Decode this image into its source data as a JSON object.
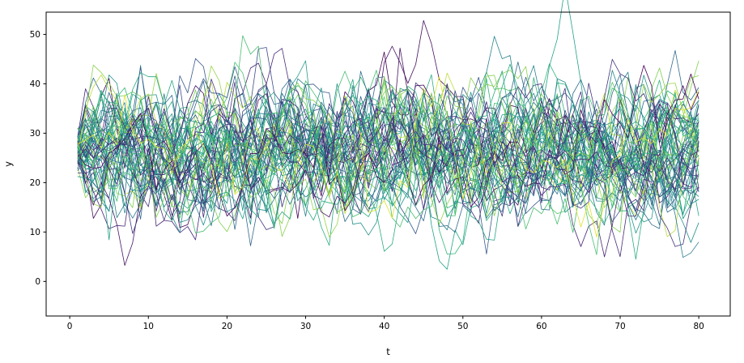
{
  "chart_data": {
    "type": "line",
    "title": "",
    "xlabel": "t",
    "ylabel": "y",
    "xlim": [
      -3,
      84
    ],
    "ylim": [
      -7,
      54.5
    ],
    "xticks": [
      0,
      10,
      20,
      30,
      40,
      50,
      60,
      70,
      80
    ],
    "yticks": [
      0,
      10,
      20,
      30,
      40,
      50
    ],
    "grid": false,
    "legend": null,
    "background": "#ffffff",
    "spine_color": "#000000",
    "series_spec": {
      "comment": "Ensemble of noisy mean-reverting trajectories; colors drawn from viridis colormap",
      "n_series": 64,
      "x_start": 1,
      "x_end": 80,
      "n_points": 80,
      "mean": 26.5,
      "initial_std": 2.5,
      "ar_phi": 0.72,
      "noise_std": 4.8,
      "seed": 42,
      "colormap": "viridis",
      "line_width": 0.8
    }
  }
}
